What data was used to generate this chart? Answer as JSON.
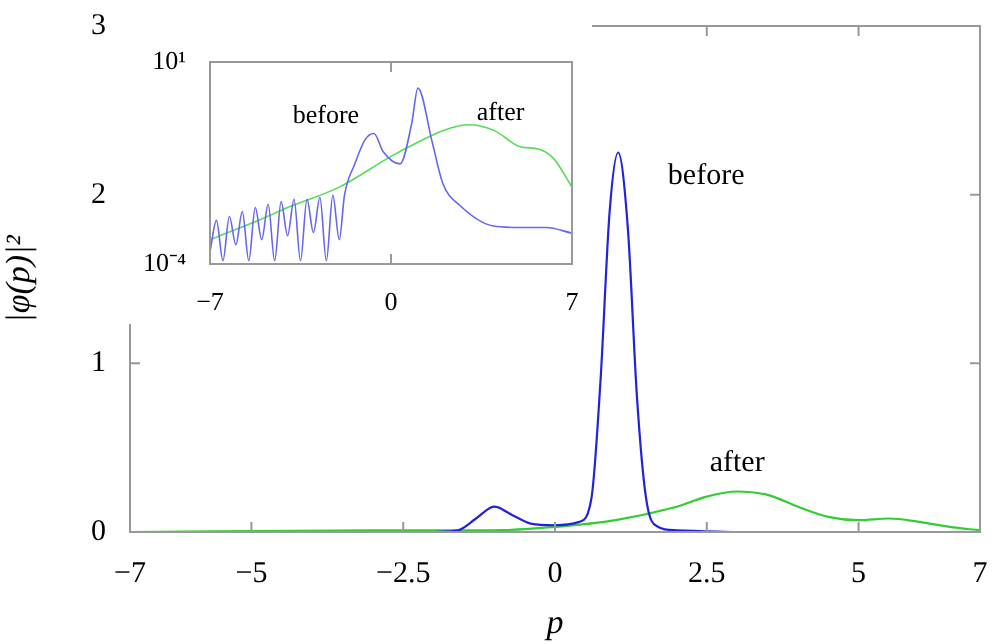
{
  "chart_data": [
    {
      "type": "line",
      "xlabel": "p",
      "ylabel": "|φ(p)|²",
      "xlim": [
        -7,
        7
      ],
      "ylim": [
        0,
        3
      ],
      "xticks": [
        -7,
        -5,
        -2.5,
        0,
        2.5,
        5,
        7
      ],
      "yticks": [
        0,
        1,
        2,
        3
      ],
      "grid": false,
      "legend": false,
      "series": [
        {
          "name": "before",
          "color": "#2222dd",
          "x": [
            -2,
            -1.6,
            -1.3,
            -1.0,
            -0.7,
            -0.4,
            0,
            0.4,
            0.6,
            0.75,
            0.9,
            1.04,
            1.2,
            1.35,
            1.5,
            1.7,
            2,
            3
          ],
          "values": [
            0,
            0.01,
            0.08,
            0.15,
            0.1,
            0.05,
            0.04,
            0.06,
            0.2,
            0.9,
            1.9,
            2.25,
            1.8,
            0.8,
            0.2,
            0.03,
            0.01,
            0
          ]
        },
        {
          "name": "after",
          "color": "#33cc33",
          "x": [
            -7,
            -3,
            -1,
            0,
            1,
            2,
            2.5,
            3,
            3.5,
            4,
            4.5,
            5,
            5.5,
            6,
            6.5,
            7
          ],
          "values": [
            0,
            0.01,
            0.01,
            0.03,
            0.07,
            0.15,
            0.21,
            0.24,
            0.22,
            0.15,
            0.09,
            0.07,
            0.08,
            0.06,
            0.03,
            0.01
          ]
        }
      ]
    },
    {
      "type": "line",
      "log": "y",
      "xlim": [
        -7,
        7
      ],
      "ylim": [
        0.0001,
        10
      ],
      "xticks": [
        -7,
        0,
        7
      ],
      "yticks": [
        {
          "value": 10,
          "label": "10¹"
        },
        {
          "value": 0.0001,
          "label": "10⁻⁴"
        }
      ],
      "grid": false,
      "legend": false,
      "series": [
        {
          "name": "before",
          "color": "#6666ee",
          "x": [
            -7,
            -6.75,
            -6.5,
            -6.25,
            -6,
            -5.75,
            -5.5,
            -5.25,
            -5,
            -4.75,
            -4.5,
            -4.25,
            -4,
            -3.75,
            -3.5,
            -3.25,
            -3,
            -2.75,
            -2.5,
            -2.25,
            -2,
            -1.8,
            -1.4,
            -1.0,
            -0.66,
            -0.3,
            0.35,
            0.8,
            1.04,
            1.6,
            2,
            2.67,
            3.96,
            5,
            6,
            7
          ],
          "values": [
            0.0002,
            0.0012,
            0.00012,
            0.0015,
            0.0003,
            0.002,
            0.00012,
            0.0025,
            0.0004,
            0.003,
            0.00012,
            0.0035,
            0.0005,
            0.004,
            0.00012,
            0.004,
            0.0006,
            0.0045,
            0.00012,
            0.005,
            0.0004,
            0.005,
            0.03,
            0.12,
            0.17,
            0.06,
            0.03,
            0.3,
            2.25,
            0.1,
            0.01,
            0.0028,
            0.00087,
            0.0008,
            0.0008,
            0.00058
          ]
        },
        {
          "name": "after",
          "color": "#55dd55",
          "x": [
            -7,
            -5,
            -4,
            -2,
            0,
            1,
            2,
            3,
            4,
            5,
            5.7,
            6.3,
            7
          ],
          "values": [
            0.0004,
            0.0013,
            0.0025,
            0.008,
            0.046,
            0.1,
            0.2,
            0.28,
            0.2,
            0.08,
            0.07,
            0.04,
            0.008
          ]
        }
      ]
    }
  ]
}
